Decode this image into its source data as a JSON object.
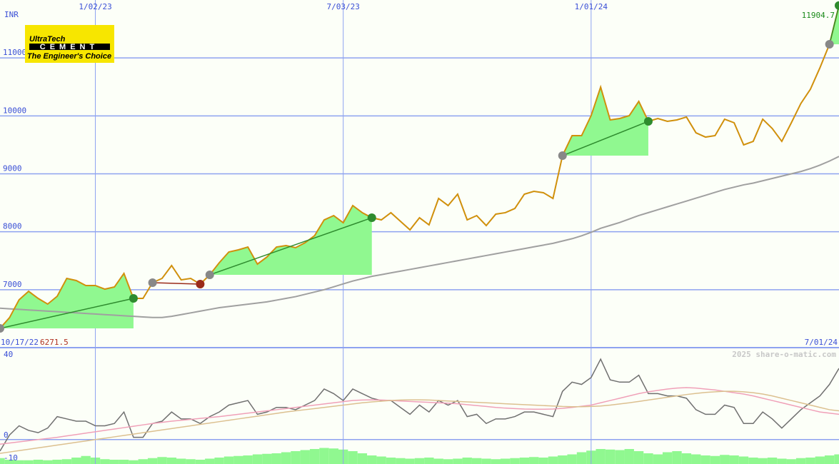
{
  "logo": {
    "name": "UltraTech",
    "tag": "CEMENT",
    "slogan": "The Engineer's Choice"
  },
  "watermark": "2025 share-o-matic.com",
  "chart_data": [
    {
      "type": "line",
      "unit": "INR",
      "low": 6271.5,
      "low_color": "#b03020",
      "last_color": "#1a8a1a",
      "categories": [
        "10/17/22",
        null,
        null,
        null,
        null,
        null,
        null,
        null,
        null,
        null,
        "1/02/23",
        null,
        null,
        null,
        null,
        null,
        null,
        null,
        null,
        null,
        null,
        null,
        null,
        null,
        null,
        null,
        null,
        null,
        null,
        null,
        null,
        null,
        null,
        null,
        null,
        null,
        "7/03/23",
        null,
        null,
        null,
        null,
        null,
        null,
        null,
        null,
        null,
        null,
        null,
        null,
        null,
        null,
        null,
        null,
        null,
        null,
        null,
        null,
        null,
        null,
        null,
        null,
        null,
        "1/01/24",
        null,
        null,
        null,
        null,
        null,
        null,
        null,
        null,
        null,
        null,
        null,
        null,
        null,
        null,
        null,
        null,
        null,
        null,
        null,
        null,
        null,
        null,
        null,
        null,
        null,
        "7/01/24"
      ],
      "series": [
        {
          "color": "#d0900c",
          "values": [
            6333,
            6518,
            6826,
            6973,
            6850,
            6752,
            6887,
            7195,
            7158,
            7072,
            7072,
            7010,
            7047,
            7281,
            6850,
            6850,
            7121,
            7195,
            7417,
            7170,
            7195,
            7097,
            7257,
            7466,
            7651,
            7688,
            7737,
            7442,
            7565,
            7737,
            7762,
            7725,
            7811,
            7934,
            8205,
            8279,
            8156,
            8452,
            8329,
            8242,
            8205,
            8329,
            8181,
            8033,
            8242,
            8119,
            8575,
            8452,
            8649,
            8205,
            8279,
            8107,
            8304,
            8329,
            8402,
            8649,
            8698,
            8674,
            8575,
            9314,
            9659,
            9659,
            10004,
            10497,
            9930,
            9955,
            10004,
            10250,
            9906,
            9955,
            9906,
            9930,
            9980,
            9708,
            9634,
            9659,
            9943,
            9881,
            9499,
            9560,
            9943,
            9782,
            9560,
            9881,
            10214,
            10460,
            10830,
            11236,
            11904.7
          ]
        },
        {
          "color": "#a0a0a0",
          "values": [
            6680,
            6670,
            6660,
            6650,
            6640,
            6630,
            6620,
            6610,
            6600,
            6590,
            6580,
            6570,
            6560,
            6550,
            6540,
            6530,
            6520,
            6520,
            6540,
            6570,
            6600,
            6630,
            6660,
            6690,
            6710,
            6730,
            6750,
            6770,
            6790,
            6820,
            6850,
            6880,
            6920,
            6960,
            7000,
            7050,
            7100,
            7150,
            7190,
            7230,
            7260,
            7290,
            7320,
            7350,
            7380,
            7410,
            7440,
            7470,
            7500,
            7530,
            7560,
            7590,
            7620,
            7650,
            7680,
            7710,
            7740,
            7770,
            7800,
            7840,
            7880,
            7930,
            7990,
            8060,
            8110,
            8160,
            8220,
            8280,
            8330,
            8380,
            8430,
            8480,
            8530,
            8580,
            8630,
            8680,
            8730,
            8770,
            8810,
            8840,
            8880,
            8920,
            8960,
            9000,
            9040,
            9090,
            9150,
            9220,
            9300
          ]
        }
      ],
      "signals": [
        {
          "from": 0,
          "to": 14,
          "color": "#2e8b2e",
          "fill": "#90f890"
        },
        {
          "from": 16,
          "to": 21,
          "color": "#9a2a1a"
        },
        {
          "from": 22,
          "to": 39,
          "color": "#2e8b2e",
          "fill": "#90f890"
        },
        {
          "from": 59,
          "to": 68,
          "color": "#2e8b2e",
          "fill": "#90f890"
        },
        {
          "from": 87,
          "to": 88,
          "color": "#2e8b2e",
          "fill": "#90f890"
        }
      ],
      "ylim": [
        6000,
        12000
      ],
      "yticks": [
        7000,
        8000,
        9000,
        10000,
        11000
      ],
      "grid": true
    },
    {
      "type": "line",
      "series": [
        {
          "color": "#707070",
          "values": [
            -5,
            2,
            6,
            4,
            3,
            5,
            10,
            9,
            8,
            8,
            6,
            6,
            7,
            12,
            1,
            1,
            7,
            8,
            12,
            9,
            9,
            7,
            10,
            12,
            15,
            16,
            17,
            11,
            12,
            14,
            14,
            13,
            15,
            17,
            22,
            20,
            17,
            22,
            20,
            18,
            17,
            17,
            14,
            11,
            15,
            12,
            17,
            15,
            17,
            10,
            11,
            7,
            9,
            9,
            10,
            12,
            12,
            11,
            10,
            21,
            25,
            24,
            27,
            35,
            26,
            25,
            25,
            28,
            20,
            20,
            19,
            19,
            18,
            13,
            11,
            11,
            15,
            14,
            7,
            7,
            12,
            9,
            5,
            9,
            13,
            16,
            19,
            24,
            31
          ]
        },
        {
          "color": "#f0a0b8",
          "values": [
            -2,
            -1.5,
            -1,
            -0.5,
            0,
            0.5,
            1,
            1.6,
            2.2,
            2.8,
            3.4,
            4,
            4.6,
            5.2,
            5.8,
            6.4,
            7,
            7.5,
            8,
            8.4,
            8.8,
            9.2,
            9.6,
            10,
            10.5,
            11,
            11.5,
            12,
            12.5,
            13,
            13.5,
            14,
            14.5,
            15,
            15.5,
            16,
            16.5,
            17,
            17.2,
            17.3,
            17.2,
            17,
            16.8,
            16.6,
            16.4,
            16.2,
            16,
            15.8,
            15.6,
            15.2,
            14.8,
            14.4,
            14,
            13.7,
            13.5,
            13.3,
            13.2,
            13.2,
            13.3,
            13.6,
            14,
            14.5,
            15,
            16,
            17,
            18,
            19,
            20,
            20.8,
            21.4,
            22,
            22.4,
            22.6,
            22.4,
            22,
            21.6,
            21,
            20.4,
            19.8,
            19,
            18,
            17,
            16,
            15,
            14,
            13,
            12,
            11.5,
            11
          ]
        },
        {
          "color": "#dcc090",
          "values": [
            -6,
            -5.4,
            -4.8,
            -4.2,
            -3.6,
            -3,
            -2.4,
            -1.8,
            -1.2,
            -0.6,
            0,
            0.6,
            1.2,
            1.8,
            2.4,
            3,
            3.6,
            4.2,
            4.8,
            5.4,
            6,
            6.6,
            7.2,
            7.8,
            8.4,
            9,
            9.6,
            10.2,
            10.8,
            11.4,
            12,
            12.5,
            13,
            13.5,
            14,
            14.5,
            15,
            15.5,
            16,
            16.4,
            16.7,
            17,
            17.2,
            17.3,
            17.3,
            17.2,
            17,
            16.8,
            16.6,
            16.4,
            16.2,
            16,
            15.8,
            15.6,
            15.4,
            15.2,
            15,
            14.8,
            14.6,
            14.4,
            14.3,
            14.3,
            14.4,
            14.6,
            15,
            15.5,
            16,
            16.6,
            17.2,
            17.8,
            18.4,
            19,
            19.6,
            20.1,
            20.5,
            20.8,
            21,
            21,
            20.8,
            20.4,
            19.8,
            19,
            18,
            17,
            16,
            15,
            14,
            13,
            12.5
          ]
        }
      ],
      "volume": {
        "color": "#90f890",
        "ylim": [
          0,
          100
        ],
        "values": [
          11,
          8,
          7,
          7,
          8,
          7,
          8,
          9,
          12,
          15,
          12,
          9,
          8,
          8,
          7,
          9,
          11,
          13,
          12,
          10,
          9,
          8,
          10,
          12,
          14,
          15,
          16,
          18,
          19,
          20,
          22,
          24,
          26,
          28,
          30,
          29,
          27,
          24,
          20,
          16,
          14,
          12,
          11,
          10,
          11,
          12,
          10,
          9,
          10,
          12,
          11,
          10,
          9,
          10,
          11,
          12,
          13,
          12,
          14,
          16,
          18,
          22,
          25,
          28,
          27,
          26,
          28,
          24,
          20,
          18,
          22,
          24,
          20,
          18,
          16,
          15,
          17,
          16,
          14,
          12,
          11,
          12,
          10,
          9,
          11,
          12,
          14,
          16,
          18
        ]
      },
      "ylim": [
        -10,
        40
      ],
      "yticks": [
        -10,
        0,
        40
      ],
      "grid": true
    }
  ]
}
